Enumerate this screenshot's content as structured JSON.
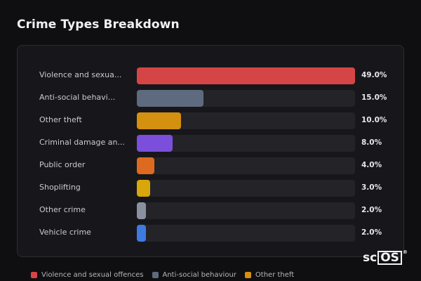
{
  "page_title": "Crime Types Breakdown",
  "chart_data": {
    "type": "bar",
    "orientation": "horizontal",
    "title": "Crime Types Breakdown",
    "categories": [
      "Violence and sexua...",
      "Anti-social behavi...",
      "Other theft",
      "Criminal damage an...",
      "Public order",
      "Shoplifting",
      "Other crime",
      "Vehicle crime"
    ],
    "values": [
      49.0,
      15.0,
      10.0,
      8.0,
      4.0,
      3.0,
      2.0,
      2.0
    ],
    "value_labels": [
      "49.0%",
      "15.0%",
      "10.0%",
      "8.0%",
      "4.0%",
      "3.0%",
      "2.0%",
      "2.0%"
    ],
    "colors": [
      "#d64545",
      "#5e6b7e",
      "#d4900f",
      "#7b4fdc",
      "#de6a1f",
      "#d8a70c",
      "#8a919e",
      "#3e7be0"
    ],
    "xlim": [
      0,
      49.0
    ],
    "grid": false
  },
  "legend": [
    {
      "label": "Violence and sexual offences",
      "color": "#d64545"
    },
    {
      "label": "Anti-social behaviour",
      "color": "#5e6b7e"
    },
    {
      "label": "Other theft",
      "color": "#d4900f"
    }
  ],
  "logo": {
    "prefix": "sc",
    "boxed": "OS",
    "reg": "®"
  }
}
